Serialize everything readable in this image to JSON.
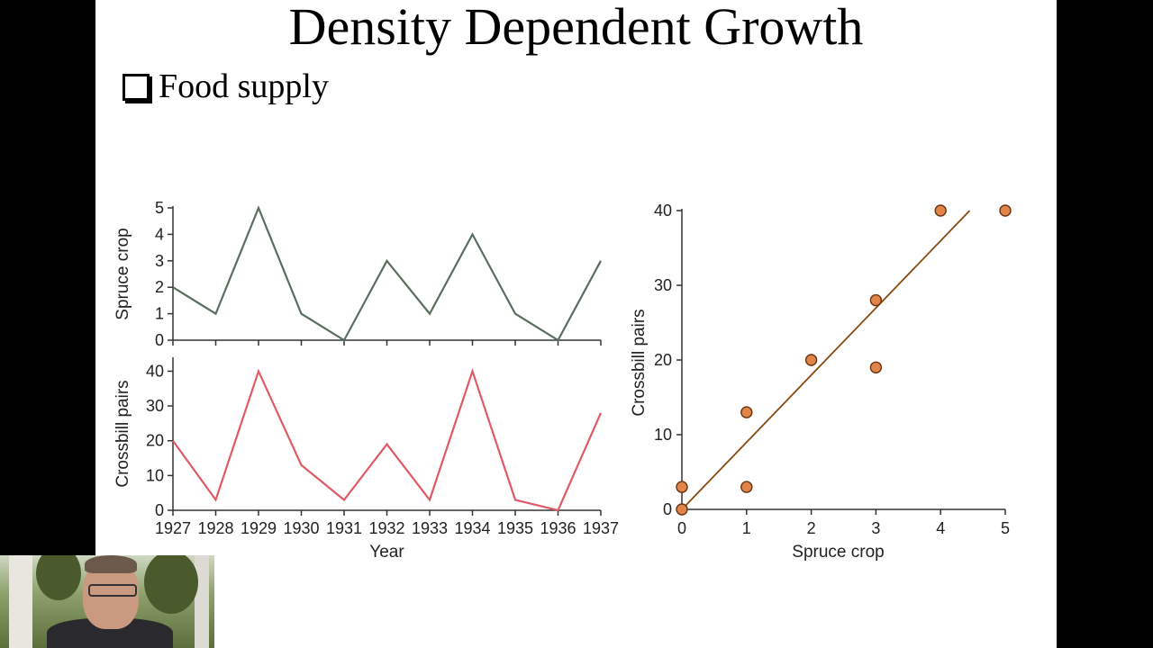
{
  "slide": {
    "title": "Density Dependent Growth",
    "bullet": "Food supply"
  },
  "chart_data": [
    {
      "type": "line",
      "x": [
        1927,
        1928,
        1929,
        1930,
        1931,
        1932,
        1933,
        1934,
        1935,
        1936,
        1937
      ],
      "series": [
        {
          "values": [
            2,
            1,
            5,
            1,
            0,
            3,
            1,
            4,
            1,
            0,
            3
          ],
          "color": "#5a6e5e"
        }
      ],
      "ylabel": "Spruce crop",
      "ylim": [
        0,
        5
      ],
      "yticks": [
        0,
        1,
        2,
        3,
        4,
        5
      ]
    },
    {
      "type": "line",
      "x": [
        1927,
        1928,
        1929,
        1930,
        1931,
        1932,
        1933,
        1934,
        1935,
        1936,
        1937
      ],
      "series": [
        {
          "values": [
            20,
            3,
            40,
            13,
            3,
            19,
            3,
            40,
            3,
            0,
            28
          ],
          "color": "#e05a66"
        }
      ],
      "xlabel": "Year",
      "ylabel": "Crossbill pairs",
      "ylim": [
        0,
        44
      ],
      "yticks": [
        0,
        10,
        20,
        30,
        40
      ]
    },
    {
      "type": "scatter",
      "points": [
        {
          "x": 0,
          "y": 3
        },
        {
          "x": 0,
          "y": 0
        },
        {
          "x": 1,
          "y": 13
        },
        {
          "x": 1,
          "y": 3
        },
        {
          "x": 2,
          "y": 20
        },
        {
          "x": 3,
          "y": 28
        },
        {
          "x": 3,
          "y": 19
        },
        {
          "x": 4,
          "y": 40
        },
        {
          "x": 5,
          "y": 40
        }
      ],
      "trendline": {
        "x": [
          0,
          4.45
        ],
        "y": [
          0,
          40
        ]
      },
      "color": "#e0844a",
      "line_color": "#8a4a10",
      "xlabel": "Spruce crop",
      "ylabel": "Crossbill pairs",
      "xlim": [
        0,
        5
      ],
      "ylim": [
        0,
        40
      ],
      "xticks": [
        0,
        1,
        2,
        3,
        4,
        5
      ],
      "yticks": [
        0,
        10,
        20,
        30,
        40
      ]
    }
  ]
}
